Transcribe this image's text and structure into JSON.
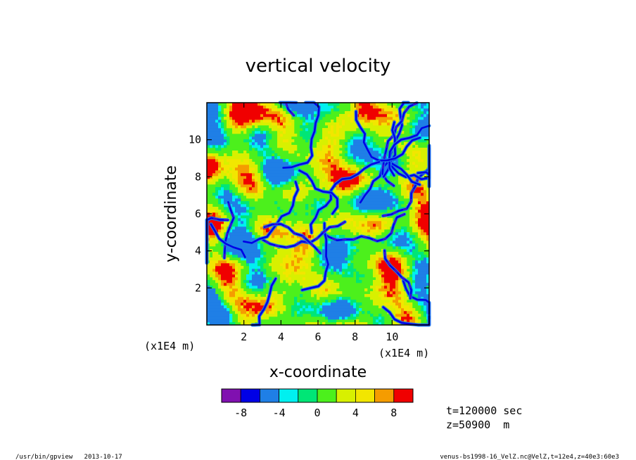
{
  "chart_data": {
    "type": "heatmap",
    "title": "vertical velocity",
    "xlabel": "x-coordinate",
    "ylabel": "y-coordinate",
    "x_unit_label": "(x1E4 m)",
    "y_unit_label": "(x1E4 m)",
    "xlim": [
      0,
      12
    ],
    "ylim": [
      0,
      12
    ],
    "x_ticks": [
      2,
      4,
      6,
      8,
      10
    ],
    "y_ticks": [
      2,
      4,
      6,
      8,
      10
    ],
    "x_tick_labels": [
      "2",
      "4",
      "6",
      "8",
      "10"
    ],
    "y_tick_labels": [
      "2",
      "4",
      "6",
      "8",
      "10"
    ],
    "grid": false,
    "colorbar": {
      "levels": [
        -10,
        -8,
        -6,
        -4,
        -2,
        0,
        2,
        4,
        6,
        8,
        10
      ],
      "colors": [
        "#8010b0",
        "#0000e6",
        "#1f7fe6",
        "#00f0f0",
        "#00e676",
        "#4cf01c",
        "#d8f000",
        "#f2e600",
        "#f59c00",
        "#f00000",
        "#f59a9a"
      ],
      "tick_values": [
        -8,
        -4,
        0,
        4,
        8
      ],
      "tick_labels": [
        "-8",
        "-4",
        "0",
        "4",
        "8"
      ]
    },
    "annotations": {
      "time": "t=120000 sec",
      "height": "z=50900  m"
    },
    "field_description_colors": {
      "dominant": [
        "#4cf01c",
        "#d8f000"
      ],
      "downdraft_lanes": [
        "#0000e6",
        "#8010b0"
      ],
      "updraft_spots": [
        "#f59c00",
        "#f00000"
      ]
    }
  },
  "footer": {
    "left": "/usr/bin/gpview   2013-10-17",
    "right": "venus-bs1998-16_VelZ.nc@VelZ,t=12e4,z=40e3:60e3"
  }
}
